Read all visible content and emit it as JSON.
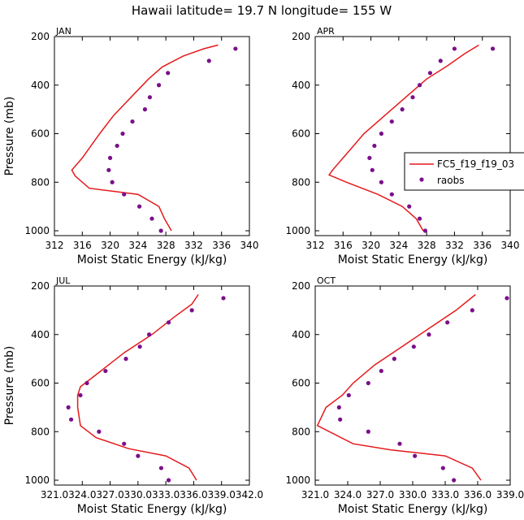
{
  "title": "Hawaii  latitude= 19.7 N longitude= 155 W",
  "colors": {
    "model": "#e41a1c",
    "obs": "#7b0f8a",
    "axis": "#000000"
  },
  "legend": {
    "model_label": "FC5_f19_f19_03",
    "obs_label": "raobs"
  },
  "chart_data": [
    {
      "type": "line",
      "panel": "JAN",
      "xlabel": "Moist Static Energy (kJ/kg)",
      "ylabel": "Pressure (mb)",
      "xlim": [
        312,
        340
      ],
      "ylim": [
        1020,
        200
      ],
      "xticks": [
        312,
        316,
        320,
        324,
        328,
        332,
        336,
        340
      ],
      "xtick_labels": [
        "312",
        "316",
        "320",
        "324",
        "328",
        "332",
        "336",
        "340"
      ],
      "yticks": [
        200,
        400,
        600,
        800,
        1000
      ],
      "ytick_labels": [
        "200",
        "400",
        "600",
        "800",
        "1000"
      ],
      "model": {
        "name": "FC5_f19_f19_03",
        "x": [
          328.8,
          327.8,
          327.0,
          324.0,
          317.0,
          315.0,
          314.5,
          316.0,
          318.5,
          320.5,
          323.0,
          325.5,
          327.5,
          330.5,
          333.5,
          335.5
        ],
        "y": [
          1000,
          950,
          900,
          850,
          825,
          775,
          750,
          700,
          600,
          525,
          450,
          375,
          325,
          280,
          250,
          235
        ]
      },
      "obs": {
        "name": "raobs",
        "x": [
          327.3,
          326.0,
          324.2,
          322.0,
          320.3,
          319.8,
          320.0,
          321.0,
          321.8,
          323.2,
          325.0,
          325.7,
          327.0,
          328.3,
          334.2,
          338.0
        ],
        "y": [
          1000,
          950,
          900,
          850,
          800,
          750,
          700,
          650,
          600,
          550,
          500,
          450,
          400,
          350,
          300,
          250
        ]
      }
    },
    {
      "type": "line",
      "panel": "APR",
      "xlabel": "Moist Static Energy (kJ/kg)",
      "ylabel": "",
      "xlim": [
        312,
        340
      ],
      "ylim": [
        1020,
        200
      ],
      "xticks": [
        312,
        316,
        320,
        324,
        328,
        332,
        336,
        340
      ],
      "xtick_labels": [
        "312",
        "316",
        "320",
        "324",
        "328",
        "332",
        "336",
        "340"
      ],
      "yticks": [
        200,
        400,
        600,
        800,
        1000
      ],
      "ytick_labels": [
        "200",
        "400",
        "600",
        "800",
        "1000"
      ],
      "model": {
        "name": "FC5_f19_f19_03",
        "x": [
          327.5,
          326.5,
          324.5,
          321.0,
          316.5,
          314.0,
          314.5,
          316.0,
          319.0,
          322.0,
          325.0,
          328.0,
          331.0,
          333.5,
          335.5
        ],
        "y": [
          1000,
          950,
          900,
          850,
          800,
          770,
          750,
          700,
          600,
          525,
          450,
          375,
          320,
          270,
          235
        ]
      },
      "obs": {
        "name": "raobs",
        "x": [
          327.8,
          327.0,
          325.5,
          323.0,
          321.5,
          320.2,
          319.8,
          320.5,
          321.5,
          323.0,
          324.5,
          326.0,
          327.0,
          328.5,
          330.0,
          332.0,
          337.5
        ],
        "y": [
          1000,
          950,
          900,
          850,
          800,
          750,
          700,
          650,
          600,
          550,
          500,
          450,
          400,
          350,
          300,
          250,
          250
        ]
      }
    },
    {
      "type": "line",
      "panel": "JUL",
      "xlabel": "Moist Static Energy (kJ/kg)",
      "ylabel": "Pressure (mb)",
      "xlim": [
        321.0,
        342.0
      ],
      "ylim": [
        1020,
        200
      ],
      "xticks": [
        321.0,
        324.0,
        327.0,
        330.0,
        333.0,
        336.0,
        339.0,
        342.0
      ],
      "xtick_labels": [
        "321.0",
        "324.0",
        "327.0",
        "330.0",
        "333.0",
        "336.0",
        "339.0",
        "342.0"
      ],
      "yticks": [
        200,
        400,
        600,
        800,
        1000
      ],
      "ytick_labels": [
        "200",
        "400",
        "600",
        "800",
        "1000"
      ],
      "model": {
        "name": "FC5_f19_f19_03",
        "x": [
          336.3,
          335.5,
          333.0,
          329.0,
          325.5,
          323.8,
          323.5,
          323.5,
          323.8,
          326.0,
          328.5,
          331.5,
          334.0,
          335.8,
          336.5
        ],
        "y": [
          1000,
          950,
          900,
          870,
          825,
          775,
          700,
          650,
          615,
          550,
          475,
          400,
          325,
          275,
          235
        ]
      },
      "obs": {
        "name": "raobs",
        "x": [
          333.3,
          332.5,
          330.0,
          328.5,
          325.8,
          322.8,
          322.5,
          323.8,
          324.5,
          326.5,
          328.7,
          330.2,
          331.2,
          333.3,
          335.8,
          339.2
        ],
        "y": [
          1000,
          950,
          900,
          850,
          800,
          750,
          700,
          650,
          600,
          550,
          500,
          450,
          400,
          350,
          300,
          250
        ]
      }
    },
    {
      "type": "line",
      "panel": "OCT",
      "xlabel": "Moist Static Energy (kJ/kg)",
      "ylabel": "",
      "xlim": [
        321.0,
        339.0
      ],
      "ylim": [
        1020,
        200
      ],
      "xticks": [
        321.0,
        324.0,
        327.0,
        330.0,
        333.0,
        336.0,
        339.0
      ],
      "xtick_labels": [
        "321.0",
        "324.0",
        "327.0",
        "330.0",
        "333.0",
        "336.0",
        "339.0"
      ],
      "yticks": [
        200,
        400,
        600,
        800,
        1000
      ],
      "ytick_labels": [
        "200",
        "400",
        "600",
        "800",
        "1000"
      ],
      "model": {
        "name": "FC5_f19_f19_03",
        "x": [
          336.3,
          335.5,
          333.0,
          328.0,
          324.5,
          321.2,
          322.0,
          323.5,
          324.5,
          326.5,
          329.0,
          331.5,
          334.0,
          335.8
        ],
        "y": [
          1000,
          950,
          900,
          875,
          850,
          775,
          700,
          650,
          600,
          525,
          450,
          375,
          300,
          235
        ]
      },
      "obs": {
        "name": "raobs",
        "x": [
          333.8,
          332.8,
          330.2,
          328.8,
          325.9,
          323.3,
          323.2,
          324.1,
          325.9,
          327.1,
          328.3,
          330.1,
          331.5,
          333.2,
          335.5,
          338.7
        ],
        "y": [
          1000,
          950,
          900,
          850,
          800,
          750,
          700,
          650,
          600,
          550,
          500,
          450,
          400,
          350,
          300,
          250
        ]
      }
    }
  ]
}
